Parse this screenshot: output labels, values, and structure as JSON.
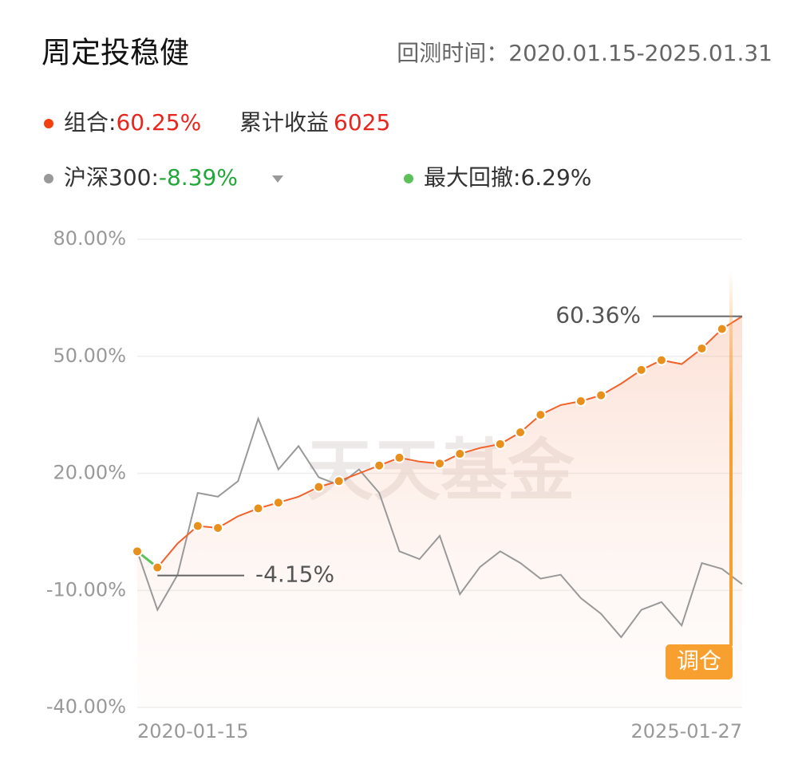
{
  "chart_data": {
    "type": "line",
    "title": "周定投稳健",
    "subtitle": "回测时间：2020.01.15-2025.01.31",
    "categories": [
      "2020-01-15",
      null,
      null,
      null,
      null,
      null,
      null,
      null,
      null,
      null,
      null,
      null,
      null,
      null,
      null,
      null,
      null,
      null,
      null,
      null,
      null,
      null,
      null,
      null,
      null,
      null,
      null,
      null,
      null,
      null,
      "2025-01-27"
    ],
    "series": [
      {
        "name": "组合:",
        "color": "#f2622a",
        "return_label": "60.25%",
        "return_color": "#e8261e",
        "values": [
          0,
          -4.15,
          2,
          6.5,
          6,
          9,
          11,
          12.5,
          14,
          16.5,
          18,
          20,
          22,
          24,
          23,
          22.5,
          25,
          26.5,
          27.5,
          30.5,
          35,
          37.5,
          38.5,
          40,
          43,
          46.5,
          49,
          48,
          52,
          57,
          60.25
        ],
        "markers": [
          0,
          1,
          3,
          4,
          6,
          7,
          9,
          10,
          12,
          13,
          15,
          16,
          18,
          19,
          20,
          22,
          23,
          25,
          26,
          28,
          29
        ]
      },
      {
        "name": "沪深300:",
        "color": "#999999",
        "return_label": "-8.39%",
        "return_color": "#22a83a",
        "values": [
          0,
          -15,
          -6,
          15,
          14,
          18,
          34,
          21,
          27,
          19,
          17,
          21,
          15,
          0,
          -2,
          4,
          -11,
          -4,
          0,
          -3,
          -7,
          -6,
          -12,
          -16,
          -22,
          -15,
          -13,
          -19,
          -3,
          -4.5,
          -8.39
        ]
      }
    ],
    "stats": [
      {
        "label": "累计收益",
        "value": 6025,
        "color": "#e8261e"
      },
      {
        "label": "最大回撤:",
        "value_label": "6.29%",
        "color": "#5cc15a"
      }
    ],
    "drawdown_color": "#5cc15a",
    "drawdown_range": [
      0,
      1
    ],
    "annotations": {
      "min": "-4.15%",
      "max": "60.36%"
    },
    "rebalance_label": "调仓",
    "watermark": "天天基金",
    "ylim": [
      -40,
      80
    ],
    "yticks": [
      {
        "value": 80,
        "label": "80.00%"
      },
      {
        "value": 50,
        "label": "50.00%"
      },
      {
        "value": 20,
        "label": "20.00%"
      },
      {
        "value": -10,
        "label": "-10.00%"
      },
      {
        "value": -40,
        "label": "-40.00%"
      }
    ],
    "grid": true
  }
}
